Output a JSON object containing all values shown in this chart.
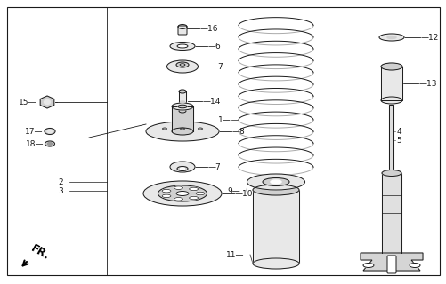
{
  "bg_color": "#ffffff",
  "fig_width": 5.02,
  "fig_height": 3.2,
  "dpi": 100,
  "lc": "#1a1a1a",
  "fc_light": "#e8e8e8",
  "fc_mid": "#d0d0d0",
  "fc_white": "#ffffff"
}
